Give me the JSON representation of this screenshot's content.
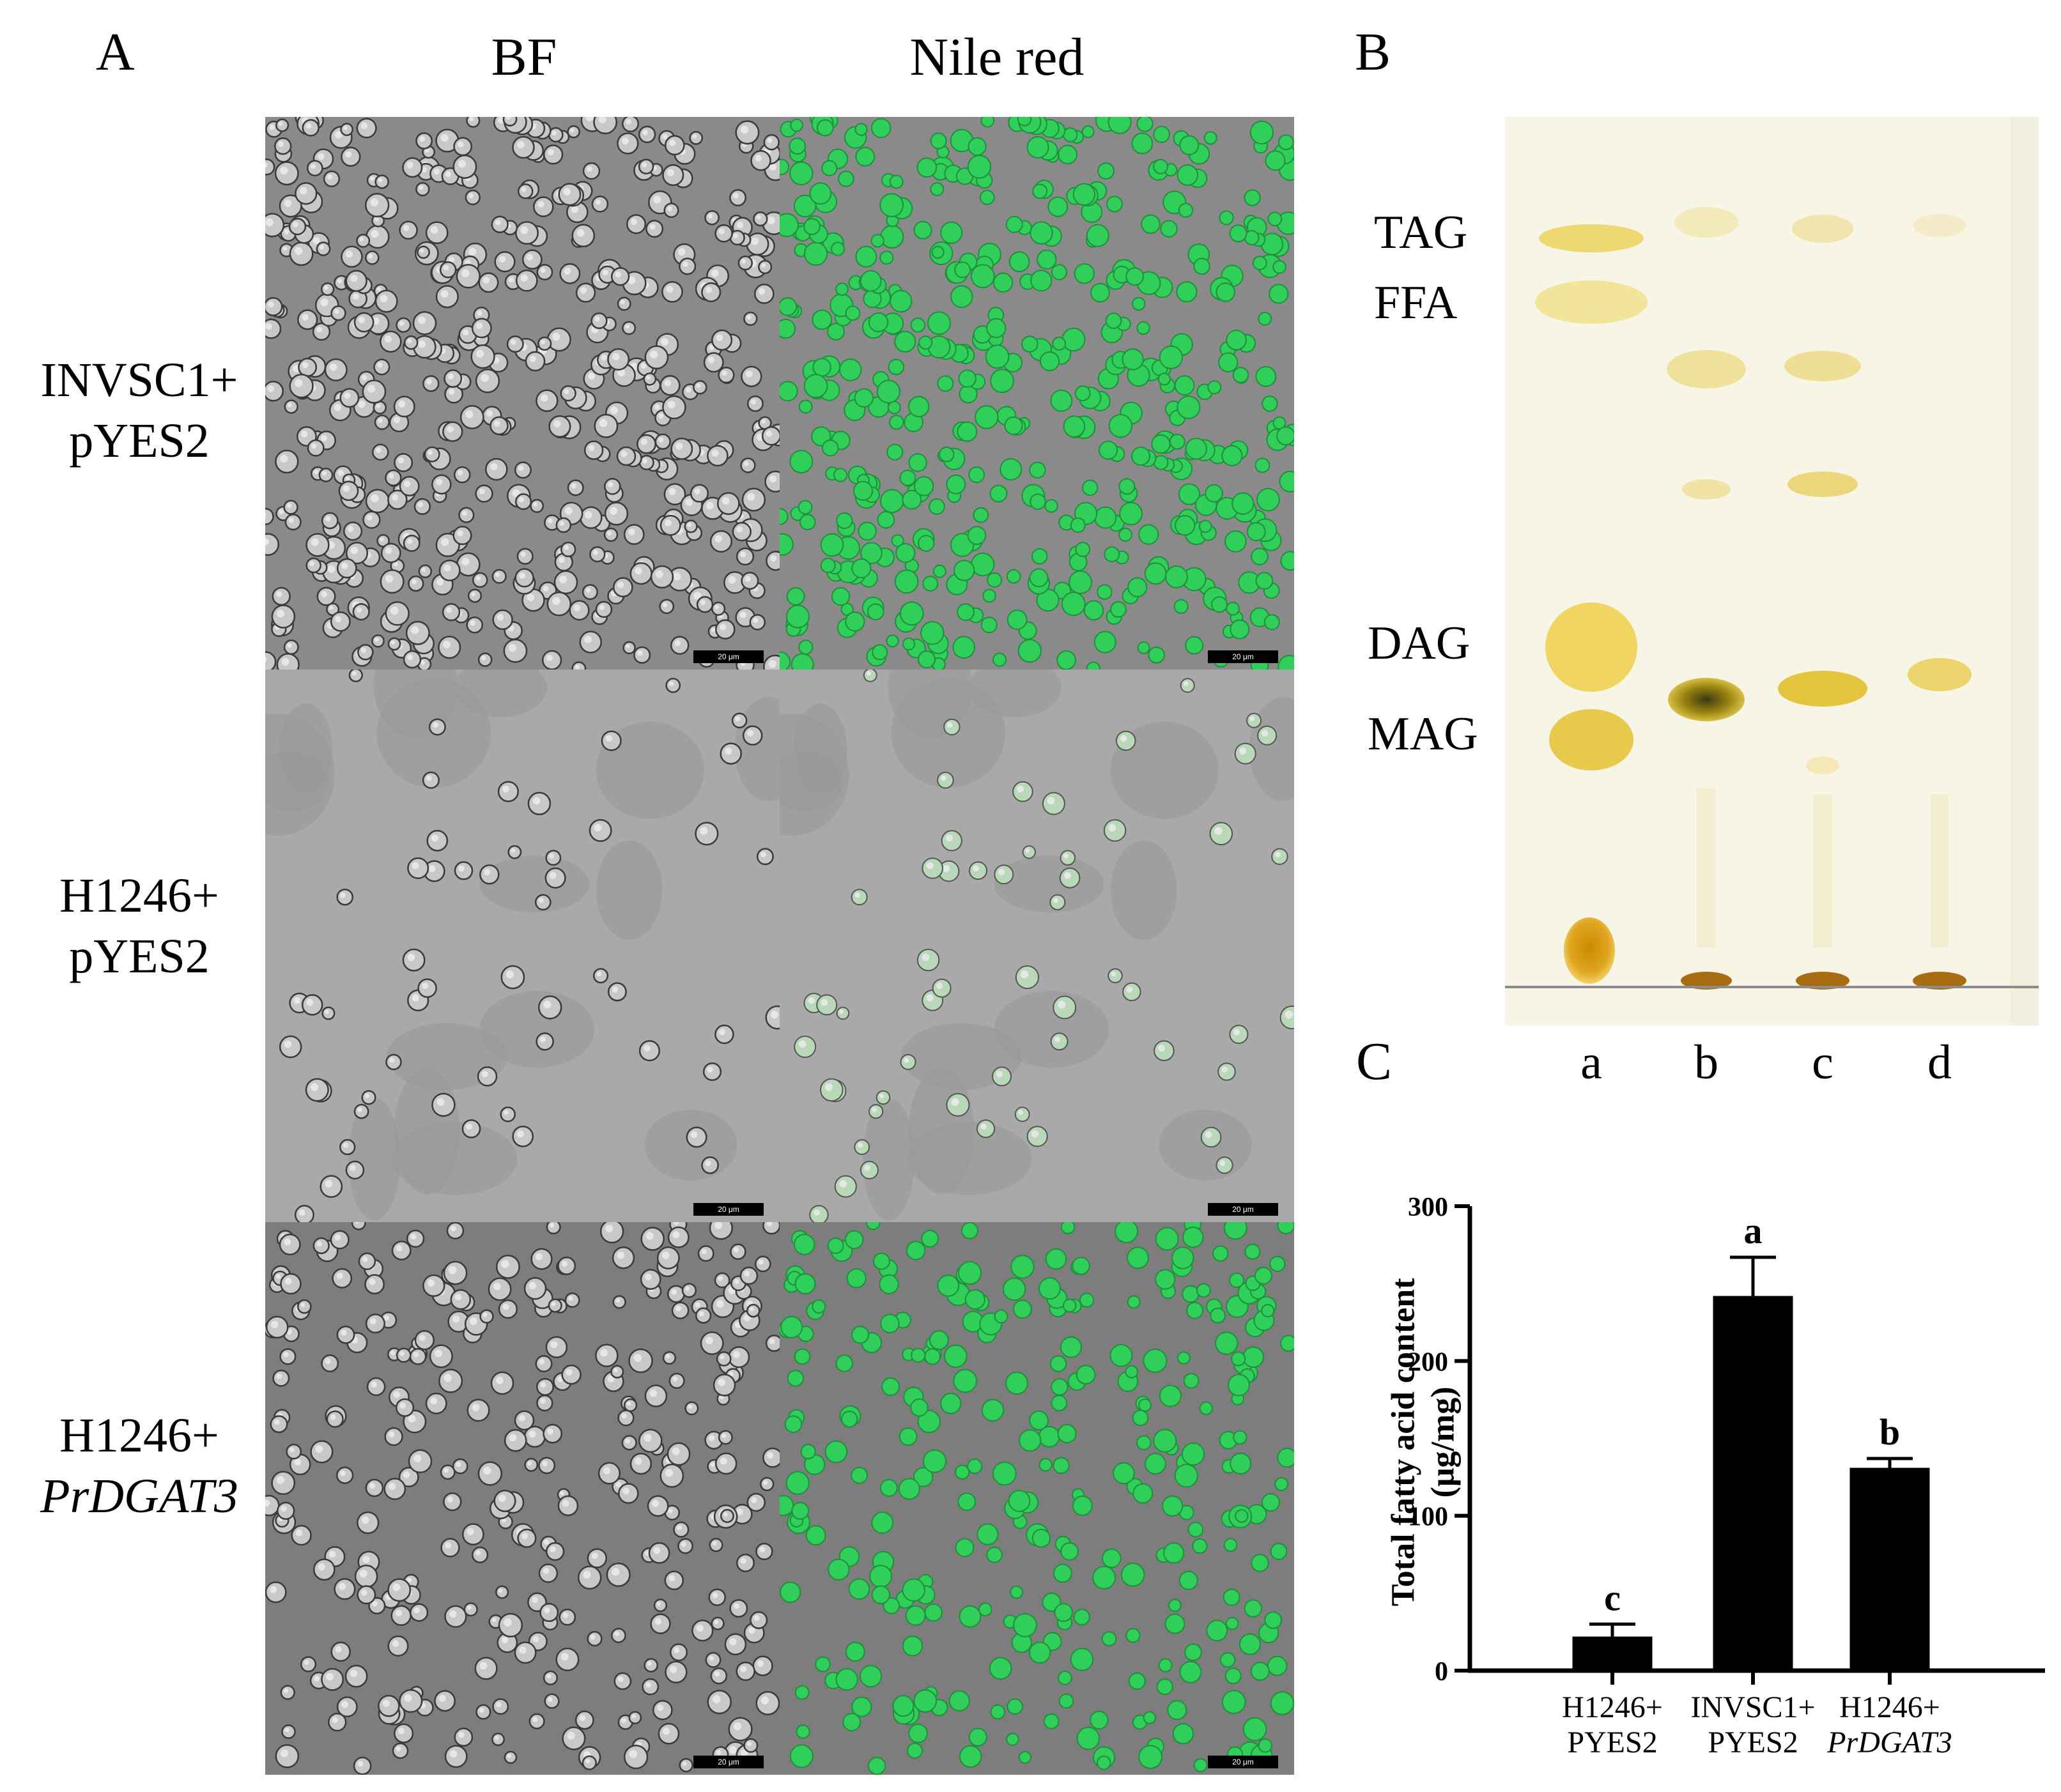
{
  "panels": {
    "A": "A",
    "B": "B",
    "C": "C"
  },
  "panel_a": {
    "columns": [
      "BF",
      "Nile red"
    ],
    "rows": [
      {
        "line1": "INVSC1+",
        "line2": "pYES2",
        "line2_italic": false
      },
      {
        "line1": "H1246+",
        "line2": "pYES2",
        "line2_italic": false
      },
      {
        "line1": "H1246+",
        "line2": "PrDGAT3",
        "line2_italic": true
      }
    ],
    "scale_bar": "20 μm"
  },
  "panel_b": {
    "bands": [
      "TAG",
      "FFA",
      "DAG",
      "MAG"
    ],
    "lanes": [
      "a",
      "b",
      "c",
      "d"
    ]
  },
  "chart_data": {
    "type": "bar",
    "categories": [
      {
        "line1": "H1246+",
        "line2": "PYES2",
        "italic2": false
      },
      {
        "line1": "INVSC1+",
        "line2": "PYES2",
        "italic2": false
      },
      {
        "line1": "H1246+",
        "line2": "PrDGAT3",
        "italic2": true
      }
    ],
    "values": [
      22,
      242,
      131
    ],
    "errors": [
      8,
      25,
      6
    ],
    "significance": [
      "c",
      "a",
      "b"
    ],
    "ylabel_line1": "Total fatty acid content",
    "ylabel_line2": "(μg/mg)",
    "ylim": [
      0,
      300
    ],
    "yticks": [
      0,
      100,
      200,
      300
    ],
    "bar_color": "#000000"
  }
}
